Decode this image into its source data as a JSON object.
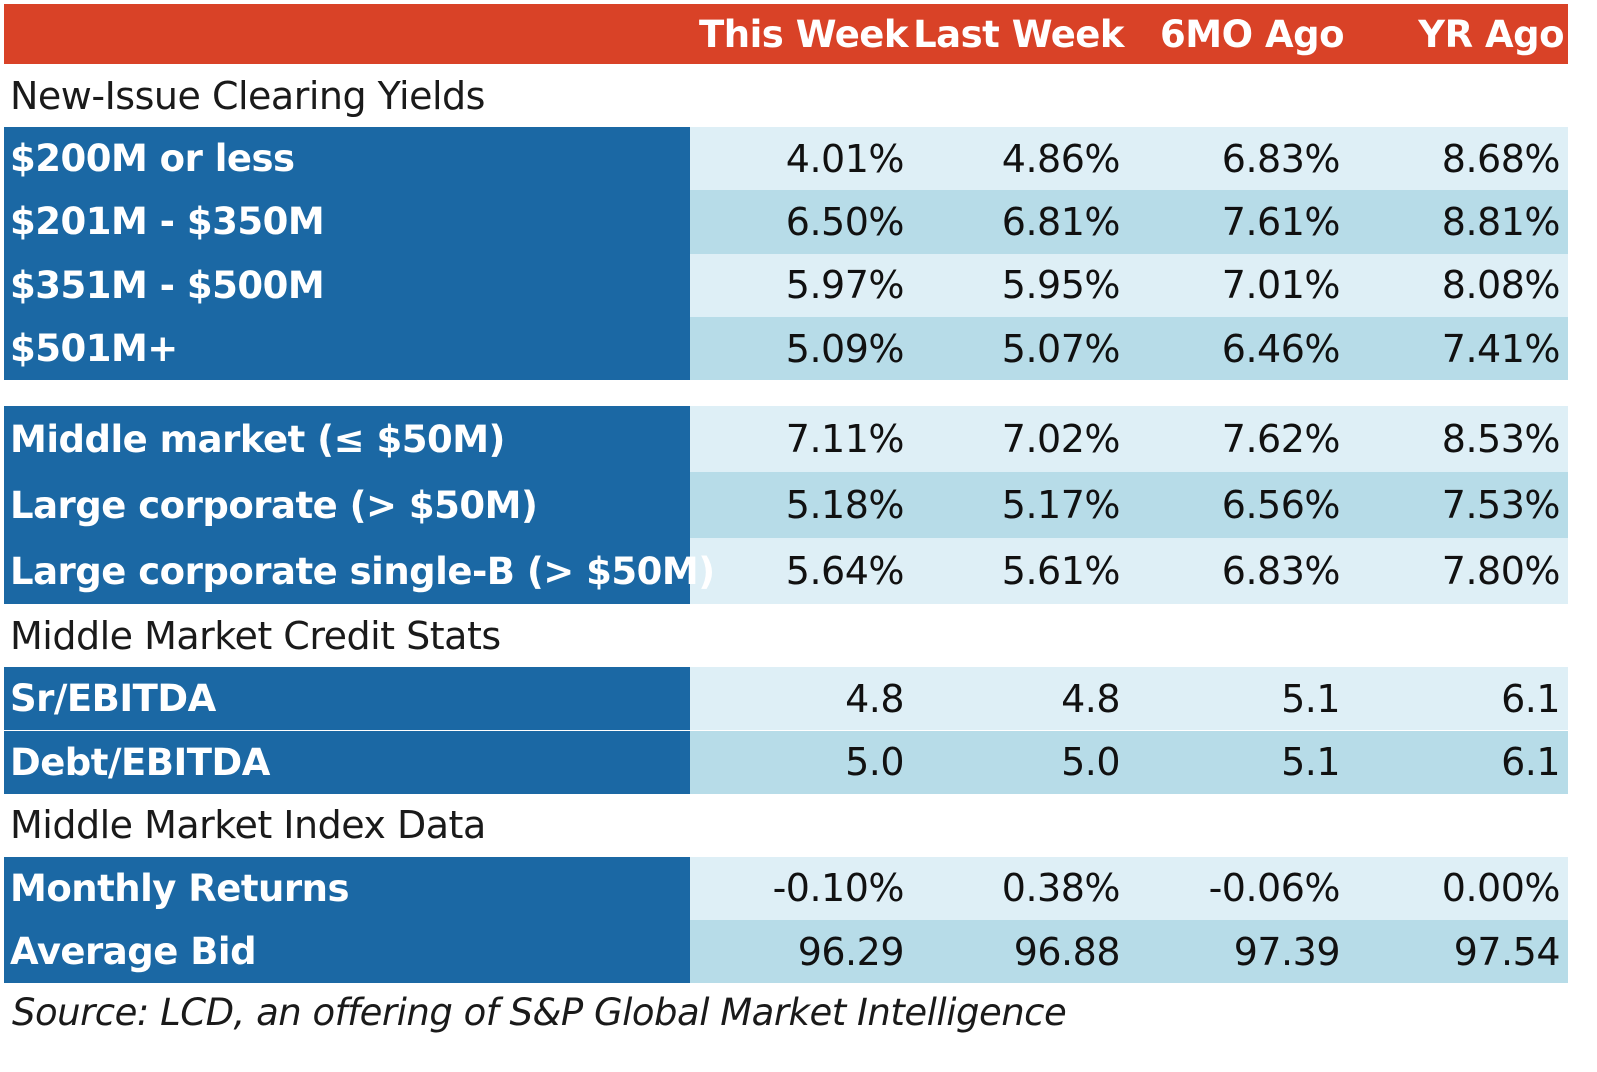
{
  "chart_data": {
    "type": "table",
    "columns": [
      "This Week",
      "Last Week",
      "6MO Ago",
      "YR Ago"
    ],
    "sections": [
      {
        "title": "New-Issue Clearing Yields",
        "rows": [
          {
            "label": "$200M or less",
            "values": [
              "4.01%",
              "4.86%",
              "6.83%",
              "8.68%"
            ]
          },
          {
            "label": "$201M - $350M",
            "values": [
              "6.50%",
              "6.81%",
              "7.61%",
              "8.81%"
            ]
          },
          {
            "label": "$351M - $500M",
            "values": [
              "5.97%",
              "5.95%",
              "7.01%",
              "8.08%"
            ]
          },
          {
            "label": "$501M+",
            "values": [
              "5.09%",
              "5.07%",
              "6.46%",
              "7.41%"
            ]
          }
        ]
      },
      {
        "title": "",
        "rows": [
          {
            "label": "Middle market (≤ $50M)",
            "values": [
              "7.11%",
              "7.02%",
              "7.62%",
              "8.53%"
            ]
          },
          {
            "label": "Large corporate (> $50M)",
            "values": [
              "5.18%",
              "5.17%",
              "6.56%",
              "7.53%"
            ]
          },
          {
            "label": "Large corporate single-B (> $50M)",
            "values": [
              "5.64%",
              "5.61%",
              "6.83%",
              "7.80%"
            ]
          }
        ]
      },
      {
        "title": "Middle Market Credit Stats",
        "rows": [
          {
            "label": "Sr/EBITDA",
            "values": [
              "4.8",
              "4.8",
              "5.1",
              "6.1"
            ]
          },
          {
            "label": "Debt/EBITDA",
            "values": [
              "5.0",
              "5.0",
              "5.1",
              "6.1"
            ]
          }
        ]
      },
      {
        "title": "Middle Market Index Data",
        "rows": [
          {
            "label": "Monthly Returns",
            "values": [
              "-0.10%",
              "0.38%",
              "-0.06%",
              "0.00%"
            ]
          },
          {
            "label": "Average Bid",
            "values": [
              "96.29",
              "96.88",
              "97.39",
              "97.54"
            ]
          }
        ]
      }
    ],
    "source": "Source: LCD, an offering of S&P Global Market Intelligence"
  },
  "colors": {
    "header": "#d94227",
    "label_bg": "#1b68a4",
    "row_light": "#deeff6",
    "row_dark": "#b7dce8"
  }
}
